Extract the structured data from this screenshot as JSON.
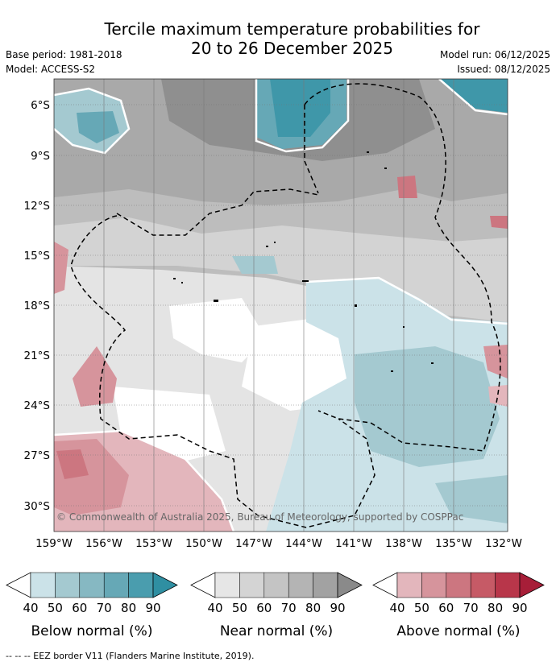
{
  "title_line1": "Tercile maximum temperature probabilities for",
  "title_line2": "20 to 26 December 2025",
  "base_period": "Base period: 1981-2018",
  "model": "Model: ACCESS-S2",
  "model_run": "Model run: 06/12/2025",
  "issued": "Issued: 08/12/2025",
  "copyright": "© Commonwealth of Australia 2025, Bureau of Meteorology, supported by COSPPac",
  "lat_ticks": [
    "6°S",
    "9°S",
    "12°S",
    "15°S",
    "18°S",
    "21°S",
    "24°S",
    "27°S",
    "30°S"
  ],
  "lon_ticks": [
    "159°W",
    "156°W",
    "153°W",
    "150°W",
    "147°W",
    "144°W",
    "141°W",
    "138°W",
    "135°W",
    "132°W"
  ],
  "colorbars": [
    {
      "name": "below",
      "label": "Below normal (%)",
      "ticks": [
        "40",
        "50",
        "60",
        "70",
        "80",
        "90"
      ],
      "colors": [
        "#cbe2e8",
        "#a4c9d0",
        "#86b8c2",
        "#66a8b6",
        "#4a9dae"
      ],
      "arrow": "#2f8fa2"
    },
    {
      "name": "near",
      "label": "Near normal (%)",
      "ticks": [
        "40",
        "50",
        "60",
        "70",
        "80",
        "90"
      ],
      "colors": [
        "#e6e6e6",
        "#d4d4d4",
        "#c4c4c4",
        "#b4b4b4",
        "#a2a2a2"
      ],
      "arrow": "#8a8a8a"
    },
    {
      "name": "above",
      "label": "Above normal (%)",
      "ticks": [
        "40",
        "50",
        "60",
        "70",
        "80",
        "90"
      ],
      "colors": [
        "#e3b6bc",
        "#d6949c",
        "#cc7680",
        "#c65a66",
        "#b8364a"
      ],
      "arrow": "#a71e38"
    }
  ],
  "eez_legend": "--  --  -- EEZ border V11 (Flanders Marine Institute, 2019)."
}
